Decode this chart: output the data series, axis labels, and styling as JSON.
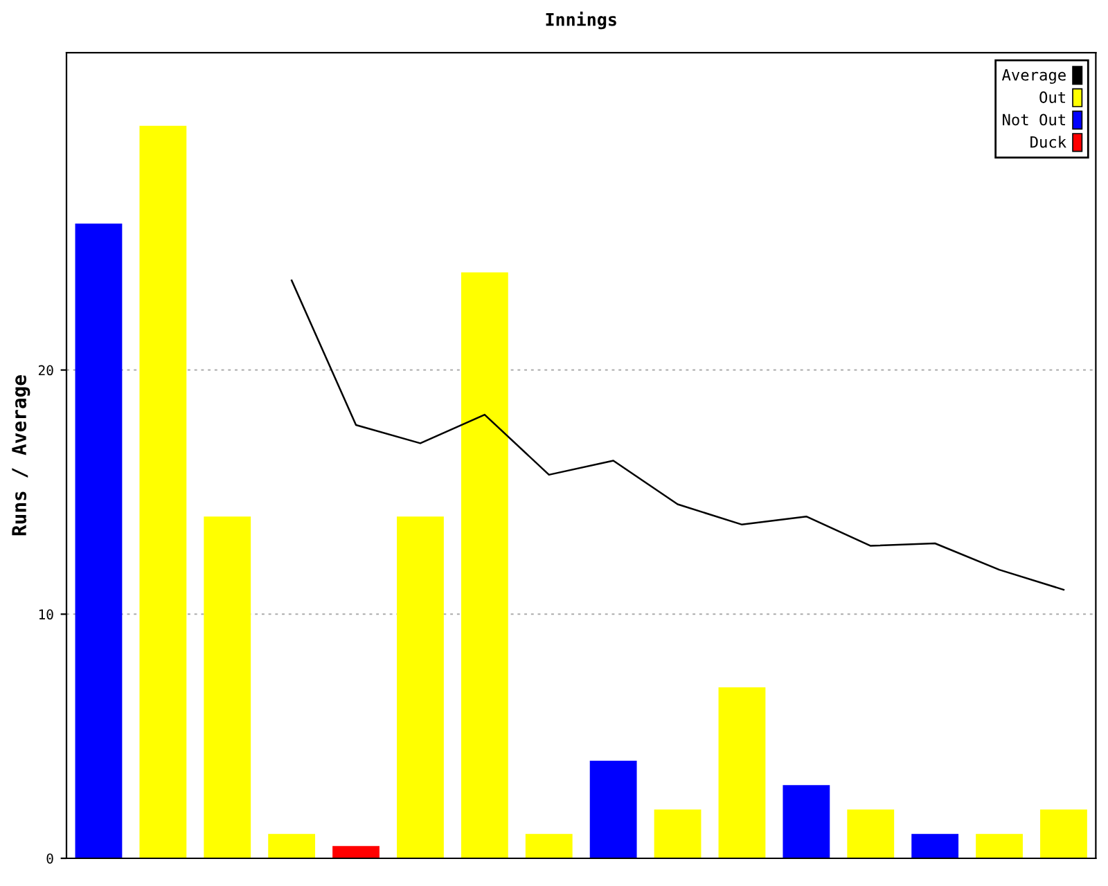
{
  "chart_data": {
    "type": "bar",
    "title": "Innings",
    "ylabel": "Runs / Average",
    "categories": [
      null,
      null,
      null,
      null,
      null,
      null,
      null,
      null,
      null,
      null,
      null,
      null,
      null,
      null,
      null,
      null
    ],
    "series": [
      {
        "name": "Average",
        "type": "line",
        "color": "#000000",
        "values": [
          null,
          null,
          null,
          23.67,
          17.75,
          17,
          18.17,
          15.71,
          16.29,
          14.5,
          13.67,
          14,
          12.8,
          12.9,
          11.82,
          11
        ]
      },
      {
        "name": "Out",
        "color": "#ffff00",
        "values": [
          null,
          30,
          14,
          1,
          null,
          14,
          24,
          1,
          null,
          2,
          7,
          null,
          2,
          null,
          1,
          2
        ]
      },
      {
        "name": "Not Out",
        "color": "#0000ff",
        "values": [
          26,
          null,
          null,
          null,
          null,
          null,
          null,
          null,
          4,
          null,
          null,
          3,
          null,
          1,
          null,
          null
        ]
      },
      {
        "name": "Duck",
        "color": "#ff0000",
        "values": [
          null,
          null,
          null,
          null,
          0.5,
          null,
          null,
          null,
          null,
          null,
          null,
          null,
          null,
          null,
          null,
          null
        ]
      }
    ],
    "ylim": [
      0,
      33
    ],
    "yticks": [
      0,
      10,
      20
    ],
    "grid": "y",
    "legend": "top right",
    "tick_labels": "y"
  }
}
